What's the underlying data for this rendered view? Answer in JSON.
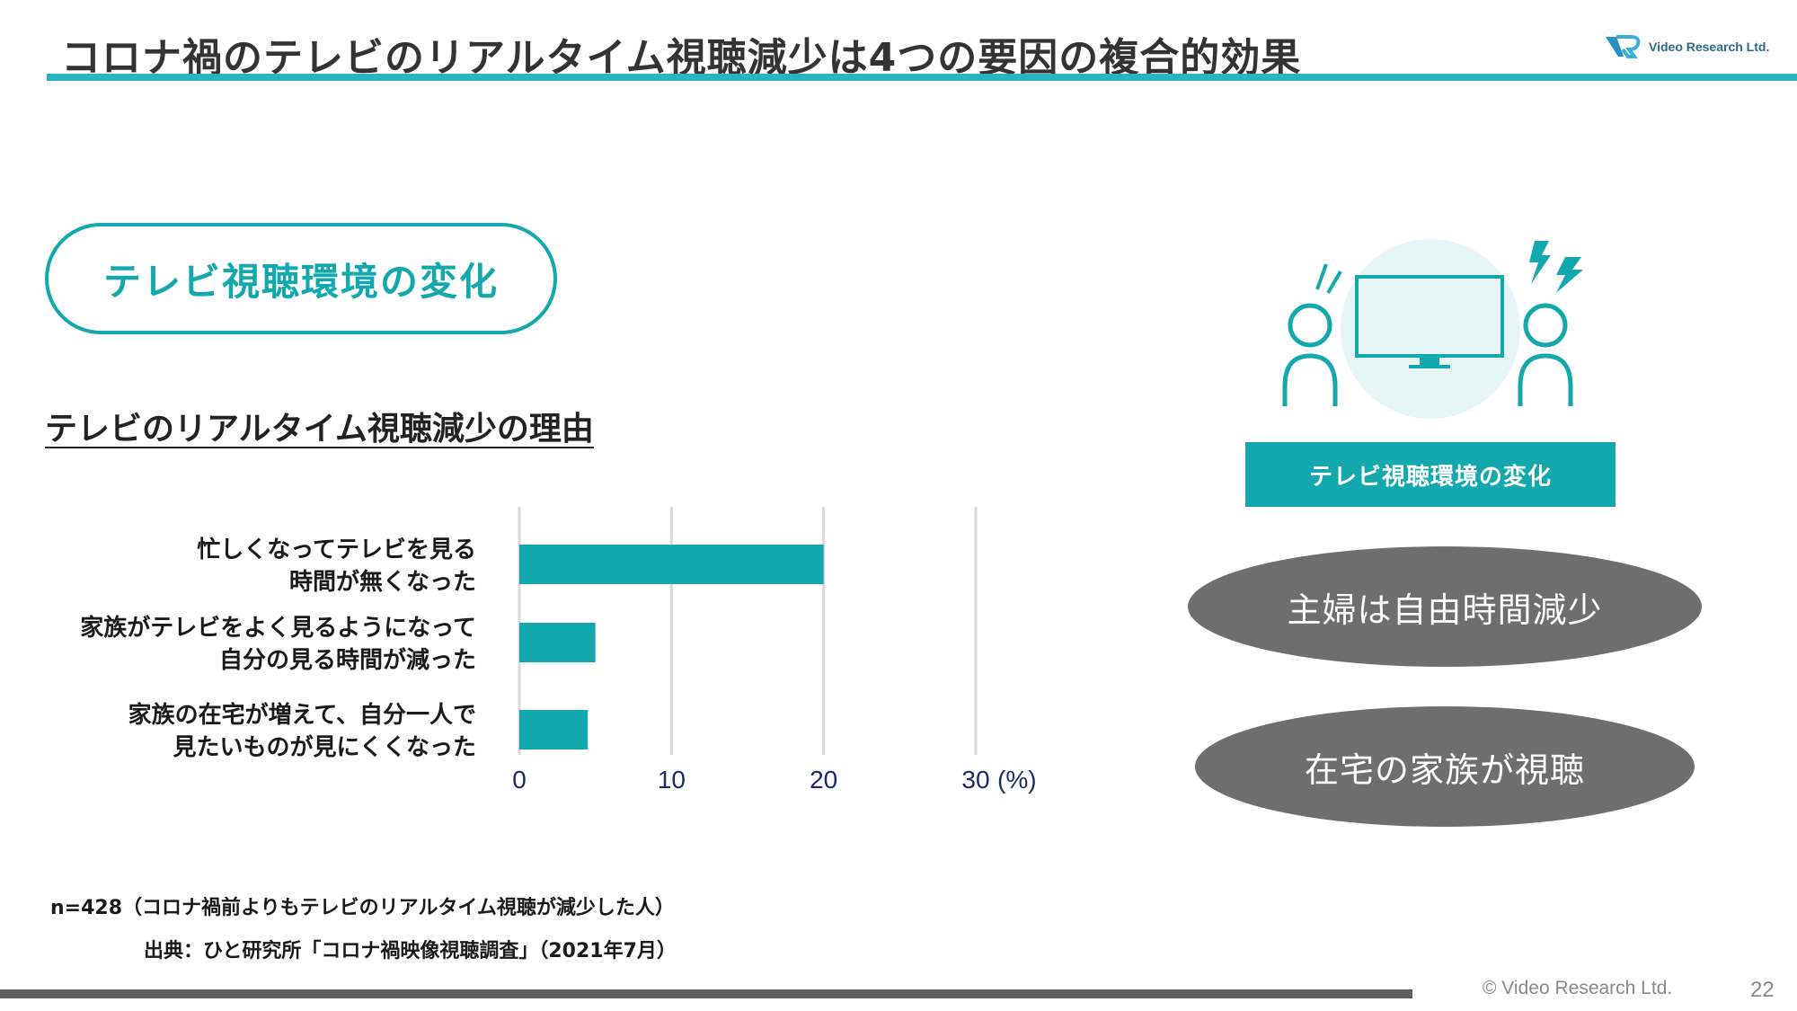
{
  "header": {
    "title": "コロナ禍のテレビのリアルタイム視聴減少は4つの要因の複合的効果",
    "logo_text": "Video Research Ltd."
  },
  "section_pill": {
    "label": "テレビ視聴環境の変化"
  },
  "chart_title": "テレビのリアルタイム視聴減少の理由",
  "chart_data": {
    "type": "bar",
    "orientation": "horizontal",
    "categories": [
      [
        "忙しくなってテレビを見る",
        "時間が無くなった"
      ],
      [
        "家族がテレビをよく見るようになって",
        "自分の見る時間が減った"
      ],
      [
        "家族の在宅が増えて、自分一人で",
        "見たいものが見にくくなった"
      ]
    ],
    "values": [
      20.0,
      5.0,
      4.5
    ],
    "xlim": [
      0,
      30
    ],
    "ticks": [
      "0",
      "10",
      "20",
      "30"
    ],
    "unit_label": "(%)",
    "grid": true,
    "bar_color": "#12a8ad"
  },
  "notes": {
    "sample": "n=428（コロナ禍前よりもテレビのリアルタイム視聴が減少した人）",
    "source": "出典：ひと研究所「コロナ禍映像視聴調査」（2021年7月）"
  },
  "right_panel": {
    "box_label": "テレビ視聴環境の変化",
    "ellipses": [
      "主婦は自由時間減少",
      "在宅の家族が視聴"
    ],
    "illustration_icons": [
      "person-icon",
      "tv-icon",
      "person-icon",
      "lightning-icon"
    ]
  },
  "footer": {
    "copyright": "© Video Research Ltd.",
    "page_number": "22"
  },
  "colors": {
    "accent": "#12a8ad",
    "rule": "#2bb4bf",
    "ellipse": "#6e6e6e",
    "footer_bar": "#5f5f5f"
  }
}
